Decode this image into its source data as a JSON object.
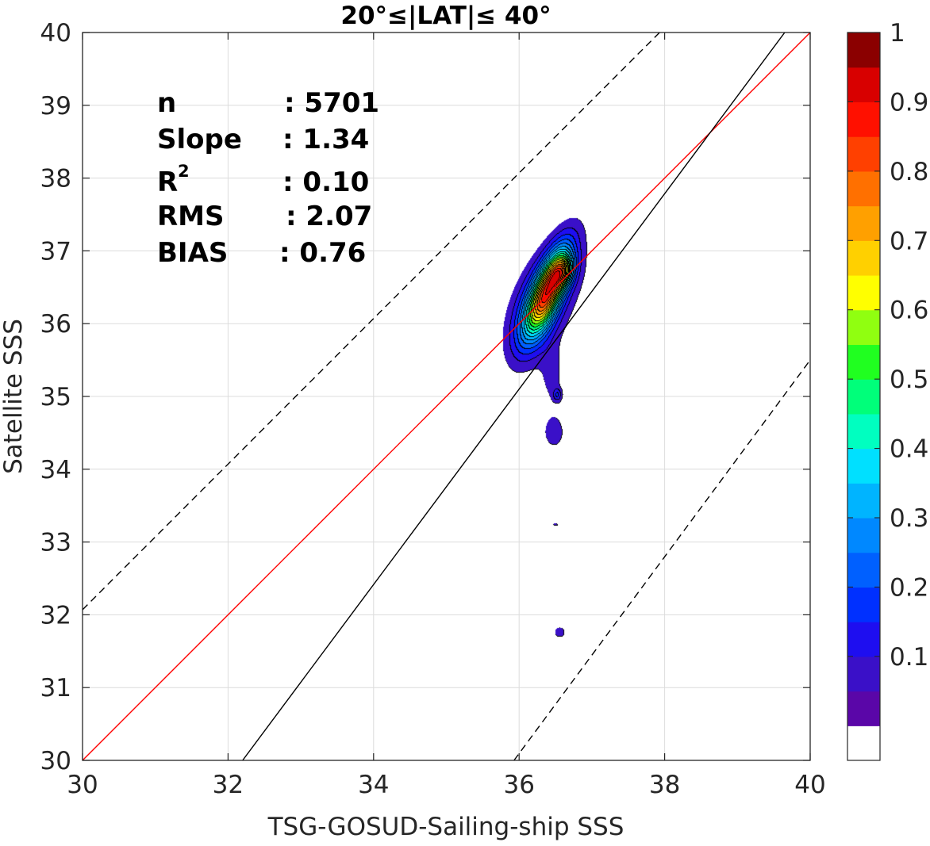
{
  "chart_data": {
    "type": "heatmap",
    "subtype": "filled-contour density scatter",
    "title": "20°≤|LAT|≤ 40°",
    "xlabel": "TSG-GOSUD-Sailing-ship SSS",
    "ylabel": "Satellite SSS",
    "xlim": [
      30,
      40
    ],
    "ylim": [
      30,
      40
    ],
    "x_ticks": [
      "30",
      "32",
      "34",
      "36",
      "38",
      "40"
    ],
    "y_ticks": [
      "30",
      "31",
      "32",
      "33",
      "34",
      "35",
      "36",
      "37",
      "38",
      "39",
      "40"
    ],
    "grid": true,
    "stats": [
      {
        "label": "n",
        "sep": ":",
        "value": "5701"
      },
      {
        "label": "Slope",
        "sep": ":",
        "value": "1.34"
      },
      {
        "label": "R",
        "sup": "2",
        "sep": ":",
        "value": "0.10"
      },
      {
        "label": "RMS",
        "sep": ":",
        "value": "2.07"
      },
      {
        "label": "BIAS",
        "sep": ":",
        "value": "0.76"
      }
    ],
    "lines": [
      {
        "name": "one-to-one",
        "color": "#ff0000",
        "style": "solid",
        "points": [
          [
            30,
            30
          ],
          [
            40,
            40
          ]
        ]
      },
      {
        "name": "regression",
        "color": "#000000",
        "style": "solid",
        "points": [
          [
            32.2,
            30
          ],
          [
            39.65,
            40
          ]
        ]
      },
      {
        "name": "upper-bound",
        "color": "#000000",
        "style": "dashed",
        "points": [
          [
            30,
            32.07
          ],
          [
            37.93,
            40
          ]
        ]
      },
      {
        "name": "lower-bound",
        "color": "#000000",
        "style": "dashed",
        "points": [
          [
            35.93,
            30
          ],
          [
            40,
            35.5
          ]
        ]
      }
    ],
    "density_peak": {
      "x": 36.6,
      "y": 36.7
    },
    "colorbar": {
      "ticks": [
        "0.1",
        "0.2",
        "0.3",
        "0.4",
        "0.5",
        "0.6",
        "0.7",
        "0.8",
        "0.9",
        "1"
      ],
      "levels": [
        0,
        0.05,
        0.1,
        0.15,
        0.2,
        0.25,
        0.3,
        0.35,
        0.4,
        0.45,
        0.5,
        0.55,
        0.6,
        0.65,
        0.7,
        0.75,
        0.8,
        0.85,
        0.9,
        0.95,
        1.0
      ],
      "colors": [
        "#ffffff",
        "#5a06a8",
        "#3a10c8",
        "#1e0ef0",
        "#0030ff",
        "#0060ff",
        "#0088ff",
        "#00b4ff",
        "#00e0ff",
        "#00ffc0",
        "#00ff7a",
        "#20ff20",
        "#90ff10",
        "#ffff00",
        "#ffd000",
        "#ffa000",
        "#ff7000",
        "#ff4000",
        "#ff1000",
        "#d80000",
        "#8b0000"
      ]
    }
  }
}
